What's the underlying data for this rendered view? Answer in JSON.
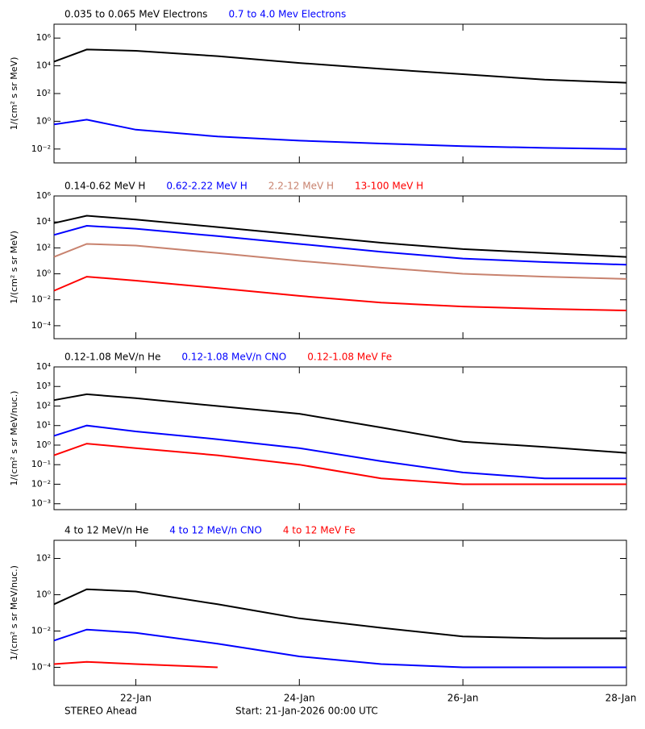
{
  "chart_data": [
    {
      "type": "line",
      "log_y": true,
      "ylabel": "1/(cm² s sr MeV)",
      "x": [
        0,
        0.4,
        1,
        2,
        3,
        4,
        5,
        6,
        7
      ],
      "xlim": [
        0,
        7
      ],
      "ylim": [
        0.001,
        10000000
      ],
      "yticks": [
        {
          "value": 0.01,
          "label": "10⁻²"
        },
        {
          "value": 1,
          "label": "10⁰"
        },
        {
          "value": 100,
          "label": "10²"
        },
        {
          "value": 10000,
          "label": "10⁴"
        },
        {
          "value": 1000000,
          "label": "10⁶"
        }
      ],
      "series": [
        {
          "name": "0.035 to 0.065 MeV Electrons",
          "color": "#000000",
          "values": [
            20000,
            150000,
            120000,
            50000,
            16000,
            6000,
            2500,
            1000,
            600
          ]
        },
        {
          "name": "0.7 to 4.0 Mev Electrons",
          "color": "#0000ff",
          "values": [
            0.6,
            1.3,
            0.25,
            0.08,
            0.04,
            0.025,
            0.016,
            0.012,
            0.01
          ]
        }
      ]
    },
    {
      "type": "line",
      "log_y": true,
      "ylabel": "1/(cm² s sr MeV)",
      "x": [
        0,
        0.4,
        1,
        2,
        3,
        4,
        5,
        6,
        7
      ],
      "xlim": [
        0,
        7
      ],
      "ylim": [
        1e-05,
        1000000
      ],
      "yticks": [
        {
          "value": 0.0001,
          "label": "10⁻⁴"
        },
        {
          "value": 0.01,
          "label": "10⁻²"
        },
        {
          "value": 1,
          "label": "10⁰"
        },
        {
          "value": 100,
          "label": "10²"
        },
        {
          "value": 10000,
          "label": "10⁴"
        },
        {
          "value": 1000000,
          "label": "10⁶"
        }
      ],
      "series": [
        {
          "name": "0.14-0.62 MeV H",
          "color": "#000000",
          "values": [
            8000,
            30000,
            15000,
            4000,
            1000,
            250,
            80,
            40,
            20
          ]
        },
        {
          "name": "0.62-2.22 MeV H",
          "color": "#0000ff",
          "values": [
            1000,
            5000,
            3000,
            800,
            200,
            50,
            15,
            8,
            5
          ]
        },
        {
          "name": "2.2-12 MeV H",
          "color": "#c8826e",
          "values": [
            20,
            200,
            150,
            40,
            10,
            3,
            1,
            0.6,
            0.4
          ]
        },
        {
          "name": "13-100 MeV H",
          "color": "#ff0000",
          "values": [
            0.05,
            0.6,
            0.3,
            0.08,
            0.02,
            0.006,
            0.003,
            0.002,
            0.0015
          ]
        }
      ]
    },
    {
      "type": "line",
      "log_y": true,
      "ylabel": "1/(cm² s sr MeV/nuc.)",
      "x": [
        0,
        0.4,
        1,
        2,
        3,
        4,
        5,
        6,
        7
      ],
      "xlim": [
        0,
        7
      ],
      "ylim": [
        0.0005,
        10000
      ],
      "yticks": [
        {
          "value": 0.001,
          "label": "10⁻³"
        },
        {
          "value": 0.01,
          "label": "10⁻²"
        },
        {
          "value": 0.1,
          "label": "10⁻¹"
        },
        {
          "value": 1,
          "label": "10⁰"
        },
        {
          "value": 10,
          "label": "10¹"
        },
        {
          "value": 100,
          "label": "10²"
        },
        {
          "value": 1000,
          "label": "10³"
        },
        {
          "value": 10000,
          "label": "10⁴"
        }
      ],
      "series": [
        {
          "name": "0.12-1.08 MeV/n He",
          "color": "#000000",
          "values": [
            200,
            400,
            250,
            100,
            40,
            8,
            1.5,
            0.8,
            0.4
          ]
        },
        {
          "name": "0.12-1.08 MeV/n CNO",
          "color": "#0000ff",
          "values": [
            3,
            10,
            5,
            2,
            0.7,
            0.15,
            0.04,
            0.02,
            0.02
          ]
        },
        {
          "name": "0.12-1.08 MeV Fe",
          "color": "#ff0000",
          "values": [
            0.3,
            1.2,
            0.7,
            0.3,
            0.1,
            0.02,
            0.01,
            0.01,
            0.01
          ]
        }
      ]
    },
    {
      "type": "line",
      "log_y": true,
      "ylabel": "1/(cm² s sr MeV/nuc.)",
      "x": [
        0,
        0.4,
        1,
        2,
        3,
        4,
        5,
        6,
        7
      ],
      "xlim": [
        0,
        7
      ],
      "ylim": [
        1e-05,
        1000
      ],
      "xticks": [
        {
          "value": 1,
          "label": "22-Jan"
        },
        {
          "value": 3,
          "label": "24-Jan"
        },
        {
          "value": 5,
          "label": "26-Jan"
        },
        {
          "value": 7,
          "label": "28-Jan"
        }
      ],
      "yticks": [
        {
          "value": 0.0001,
          "label": "10⁻⁴"
        },
        {
          "value": 0.01,
          "label": "10⁻²"
        },
        {
          "value": 1,
          "label": "10⁰"
        },
        {
          "value": 100,
          "label": "10²"
        }
      ],
      "series": [
        {
          "name": "4 to 12 MeV/n He",
          "color": "#000000",
          "values": [
            0.3,
            2,
            1.5,
            0.3,
            0.05,
            0.015,
            0.005,
            0.004,
            0.004
          ]
        },
        {
          "name": "4 to 12 MeV/n CNO",
          "color": "#0000ff",
          "values": [
            0.003,
            0.012,
            0.008,
            0.002,
            0.0004,
            0.00015,
            0.0001,
            0.0001,
            0.0001
          ]
        },
        {
          "name": "4 to 12 MeV Fe",
          "color": "#ff0000",
          "values": [
            0.00015,
            0.0002,
            0.00015,
            0.0001,
            null,
            null,
            null,
            null,
            null
          ]
        }
      ]
    }
  ],
  "footer": {
    "left": "STEREO Ahead",
    "center": "Start: 21-Jan-2026 00:00 UTC"
  }
}
